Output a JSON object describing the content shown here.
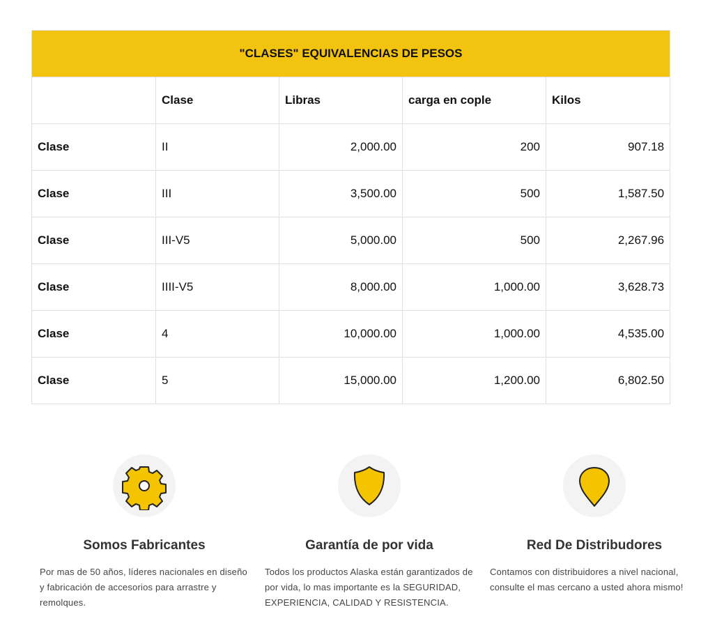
{
  "table": {
    "title": "\"CLASES\" EQUIVALENCIAS DE PESOS",
    "headers": [
      "",
      "Clase",
      "Libras",
      "carga en cople",
      "Kilos"
    ],
    "rows": [
      [
        "Clase",
        "II",
        "2,000.00",
        "200",
        "907.18"
      ],
      [
        "Clase",
        "III",
        "3,500.00",
        "500",
        "1,587.50"
      ],
      [
        "Clase",
        "III-V5",
        "5,000.00",
        "500",
        "2,267.96"
      ],
      [
        "Clase",
        "IIII-V5",
        "8,000.00",
        "1,000.00",
        "3,628.73"
      ],
      [
        "Clase",
        "4",
        "10,000.00",
        "1,000.00",
        "4,535.00"
      ],
      [
        "Clase",
        "5",
        "15,000.00",
        "1,200.00",
        "6,802.50"
      ]
    ]
  },
  "features": [
    {
      "icon": "gear-icon",
      "title": "Somos Fabricantes",
      "text": "Por mas de 50 años, líderes nacionales en diseño y fabricación de accesorios para arrastre y remolques."
    },
    {
      "icon": "shield-icon",
      "title": "Garantía de por vida",
      "text": "Todos los productos Alaska están garantizados de por vida, lo mas importante es la SEGURIDAD, EXPERIENCIA, CALIDAD Y RESISTENCIA."
    },
    {
      "icon": "map-pin-icon",
      "title": "Red De Distribudores",
      "text": "Contamos con distribuidores a nivel nacional, consulte el mas cercano a usted ahora mismo!"
    }
  ],
  "colors": {
    "accent": "#f2c30f",
    "icon_fill": "#f5c400"
  }
}
